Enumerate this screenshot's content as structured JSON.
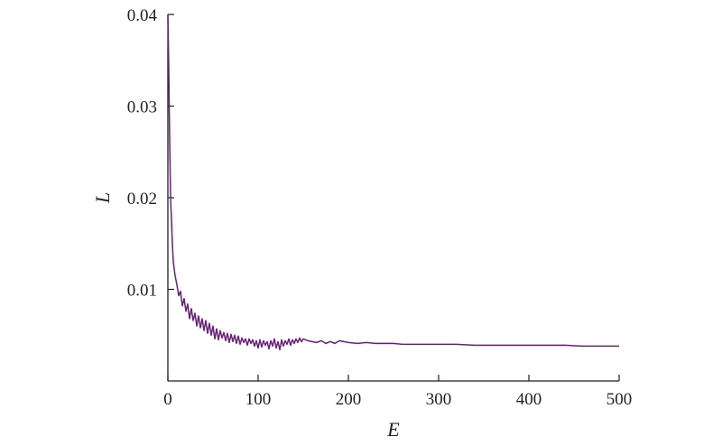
{
  "chart_data": {
    "type": "line",
    "title": "",
    "xlabel": "E",
    "ylabel": "L",
    "xlim": [
      0,
      500
    ],
    "ylim": [
      0,
      0.04
    ],
    "xticks": [
      0,
      100,
      200,
      300,
      400,
      500
    ],
    "yticks": [
      0.01,
      0.02,
      0.03,
      0.04
    ],
    "xtick_labels": [
      "0",
      "100",
      "200",
      "300",
      "400",
      "500"
    ],
    "ytick_labels": [
      "0.01",
      "0.02",
      "0.03",
      "0.04"
    ],
    "grid": false,
    "legend": "none",
    "series_color": "#6a1f7a",
    "series": [
      {
        "x": [
          0,
          1,
          2,
          3,
          4,
          5,
          6,
          8,
          10,
          12,
          14,
          16,
          18,
          20,
          22,
          24,
          26,
          28,
          30,
          32,
          34,
          36,
          38,
          40,
          42,
          44,
          46,
          48,
          50,
          52,
          54,
          56,
          58,
          60,
          62,
          64,
          66,
          68,
          70,
          72,
          74,
          76,
          78,
          80,
          82,
          84,
          86,
          88,
          90,
          92,
          94,
          96,
          98,
          100,
          102,
          104,
          106,
          108,
          110,
          112,
          114,
          116,
          118,
          120,
          122,
          124,
          126,
          128,
          130,
          132,
          134,
          136,
          138,
          140,
          142,
          144,
          146,
          148,
          150,
          155,
          160,
          165,
          170,
          175,
          180,
          185,
          190,
          195,
          200,
          210,
          220,
          230,
          240,
          250,
          260,
          280,
          300,
          320,
          340,
          360,
          380,
          400,
          420,
          440,
          460,
          480,
          500
        ],
        "y": [
          0.04,
          0.034,
          0.026,
          0.02,
          0.0175,
          0.015,
          0.013,
          0.0115,
          0.0105,
          0.0093,
          0.0098,
          0.0082,
          0.009,
          0.0076,
          0.0084,
          0.0068,
          0.0079,
          0.0066,
          0.0074,
          0.006,
          0.0071,
          0.0058,
          0.0068,
          0.0055,
          0.0066,
          0.0052,
          0.0063,
          0.005,
          0.006,
          0.0046,
          0.0057,
          0.0045,
          0.0055,
          0.0047,
          0.0053,
          0.0044,
          0.0052,
          0.0042,
          0.0051,
          0.0043,
          0.005,
          0.0041,
          0.0049,
          0.004,
          0.0047,
          0.0042,
          0.0046,
          0.0039,
          0.0046,
          0.0041,
          0.0045,
          0.0038,
          0.0044,
          0.0036,
          0.0045,
          0.0037,
          0.0044,
          0.0039,
          0.0043,
          0.0035,
          0.0044,
          0.0038,
          0.0046,
          0.0036,
          0.0043,
          0.0034,
          0.0045,
          0.0038,
          0.0044,
          0.004,
          0.0046,
          0.0039,
          0.0045,
          0.0041,
          0.0046,
          0.0042,
          0.0047,
          0.0043,
          0.0046,
          0.0044,
          0.0043,
          0.0042,
          0.0044,
          0.0041,
          0.0043,
          0.0041,
          0.0044,
          0.0043,
          0.0042,
          0.0041,
          0.0042,
          0.0041,
          0.0041,
          0.0041,
          0.004,
          0.004,
          0.004,
          0.004,
          0.0039,
          0.0039,
          0.0039,
          0.0039,
          0.0039,
          0.0039,
          0.0038,
          0.0038,
          0.0038
        ]
      }
    ]
  }
}
